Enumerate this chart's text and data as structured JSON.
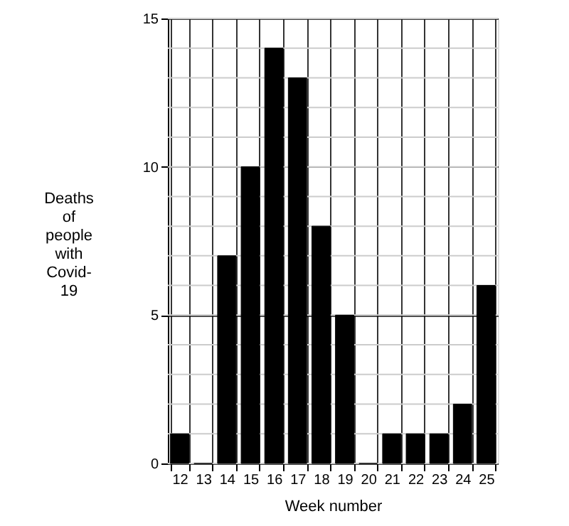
{
  "chart_data": {
    "type": "bar",
    "xlabel": "Week number",
    "ylabel": "Deaths of people with Covid-19",
    "categories": [
      "12",
      "13",
      "14",
      "15",
      "16",
      "17",
      "18",
      "19",
      "20",
      "21",
      "22",
      "23",
      "24",
      "25"
    ],
    "values": [
      1,
      0,
      7,
      10,
      14,
      13,
      8,
      5,
      0,
      1,
      1,
      1,
      2,
      6
    ],
    "color": "#000000",
    "ylim": [
      0,
      15
    ],
    "yticks": [
      0,
      5,
      10,
      15
    ],
    "grid": true
  }
}
